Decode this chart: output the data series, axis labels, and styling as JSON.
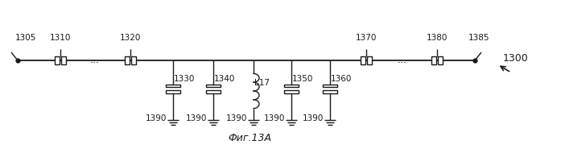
{
  "title": "Фиг.13А",
  "label_1300": "1300",
  "label_1305": "1305",
  "label_1310": "1310",
  "label_1320": "1320",
  "label_1330": "1330",
  "label_1340": "1340",
  "label_L17": "L17",
  "label_1350": "1350",
  "label_1360": "1360",
  "label_1370": "1370",
  "label_1380": "1380",
  "label_1385": "1385",
  "label_1390": "1390",
  "line_color": "#1a1a1a",
  "bg_color": "#ffffff",
  "lw": 1.0
}
